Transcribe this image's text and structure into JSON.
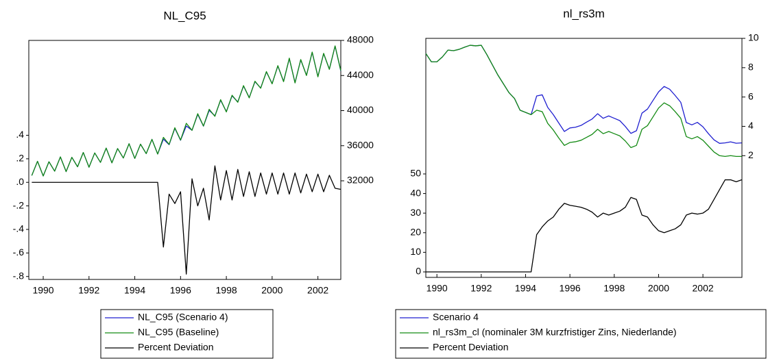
{
  "chart_data": [
    {
      "type": "line",
      "title": "NL_C95",
      "legend": "bottom",
      "x": [
        1989.5,
        1989.75,
        1990,
        1990.25,
        1990.5,
        1990.75,
        1991,
        1991.25,
        1991.5,
        1991.75,
        1992,
        1992.25,
        1992.5,
        1992.75,
        1993,
        1993.25,
        1993.5,
        1993.75,
        1994,
        1994.25,
        1994.5,
        1994.75,
        1995,
        1995.25,
        1995.5,
        1995.75,
        1996,
        1996.25,
        1996.5,
        1996.75,
        1997,
        1997.25,
        1997.5,
        1997.75,
        1998,
        1998.25,
        1998.5,
        1998.75,
        1999,
        1999.25,
        1999.5,
        1999.75,
        2000,
        2000.25,
        2000.5,
        2000.75,
        2001,
        2001.25,
        2001.5,
        2001.75,
        2002,
        2002.25,
        2002.5,
        2002.75,
        2003
      ],
      "xlim": [
        1989.37,
        2003.0
      ],
      "xticks": [
        1990,
        1992,
        1994,
        1996,
        1998,
        2000,
        2002
      ],
      "ylim": [
        -0.825,
        1.206
      ],
      "yticks": [
        {
          "value": 0.4,
          "label": ".4"
        },
        {
          "value": 0.2,
          "label": ".2"
        },
        {
          "value": 0,
          "label": ".0"
        },
        {
          "value": -0.2,
          "label": "-.2"
        },
        {
          "value": -0.4,
          "label": "-.4"
        },
        {
          "value": -0.6,
          "label": "-.6"
        },
        {
          "value": -0.8,
          "label": "-.8"
        }
      ],
      "y2lim": [
        20760,
        48000
      ],
      "y2ticks": [
        32000,
        36000,
        40000,
        44000,
        48000
      ],
      "series": [
        {
          "name": "NL_C95 (Scenario 4)",
          "color": "#1f1fd0",
          "axis": "y2",
          "values": [
            32600,
            34225,
            32550,
            34175,
            33100,
            34725,
            33050,
            34675,
            33600,
            35225,
            33550,
            35175,
            34100,
            35725,
            34050,
            35675,
            34600,
            36225,
            34550,
            36175,
            35100,
            36725,
            35050,
            36747,
            36114,
            37982,
            36621,
            38249,
            37761,
            39571,
            38231,
            40022,
            39405,
            41188,
            39890,
            41687,
            40995,
            42799,
            41487,
            43298,
            42584,
            44406,
            43084,
            45080,
            43335,
            45929,
            43185,
            45784,
            44031,
            46638,
            43881,
            46488,
            44727,
            47351,
            44523
          ]
        },
        {
          "name": "NL_C95 (Baseline)",
          "color": "#138a13",
          "axis": "y2",
          "values": [
            32600,
            34225,
            32550,
            34175,
            33100,
            34725,
            33050,
            34675,
            33600,
            35225,
            33550,
            35175,
            34100,
            35725,
            34050,
            35675,
            34600,
            36225,
            34550,
            36175,
            35100,
            36725,
            35050,
            36950,
            36150,
            38050,
            36650,
            38550,
            37750,
            39650,
            38250,
            40150,
            39350,
            41250,
            39850,
            41750,
            40950,
            42850,
            41450,
            43350,
            42550,
            44450,
            43050,
            45125,
            43300,
            45975,
            43150,
            45825,
            44000,
            46675,
            43850,
            46525,
            44700,
            47375,
            44550
          ]
        },
        {
          "name": "Percent Deviation",
          "color": "#000000",
          "axis": "y",
          "values": [
            0,
            0,
            0,
            0,
            0,
            0,
            0,
            0,
            0,
            0,
            0,
            0,
            0,
            0,
            0,
            0,
            0,
            0,
            0,
            0,
            0,
            0,
            0,
            -0.55,
            -0.1,
            -0.18,
            -0.08,
            -0.78,
            0.03,
            -0.2,
            -0.05,
            -0.32,
            0.14,
            -0.15,
            0.1,
            -0.15,
            0.11,
            -0.12,
            0.09,
            -0.12,
            0.08,
            -0.1,
            0.08,
            -0.1,
            0.08,
            -0.1,
            0.08,
            -0.09,
            0.07,
            -0.08,
            0.07,
            -0.08,
            0.06,
            -0.05,
            -0.06
          ]
        }
      ]
    },
    {
      "type": "line",
      "title": "nl_rs3m",
      "legend": "bottom",
      "x": [
        1989.5,
        1989.75,
        1990,
        1990.25,
        1990.5,
        1990.75,
        1991,
        1991.25,
        1991.5,
        1991.75,
        1992,
        1992.25,
        1992.5,
        1992.75,
        1993,
        1993.25,
        1993.5,
        1993.75,
        1994,
        1994.25,
        1994.5,
        1994.75,
        1995,
        1995.25,
        1995.5,
        1995.75,
        1996,
        1996.25,
        1996.5,
        1996.75,
        1997,
        1997.25,
        1997.5,
        1997.75,
        1998,
        1998.25,
        1998.5,
        1998.75,
        1999,
        1999.25,
        1999.5,
        1999.75,
        2000,
        2000.25,
        2000.5,
        2000.75,
        2001,
        2001.25,
        2001.5,
        2001.75,
        2002,
        2002.25,
        2002.5,
        2002.75,
        2003,
        2003.25,
        2003.5,
        2003.75
      ],
      "xlim": [
        1989.5,
        2003.76
      ],
      "xticks": [
        1990,
        1992,
        1994,
        1996,
        1998,
        2000,
        2002
      ],
      "ylim": [
        -2.8,
        119.2
      ],
      "yticks": [
        0,
        10,
        20,
        30,
        40,
        50
      ],
      "y2lim": [
        -6.3,
        10
      ],
      "y2ticks": [
        2,
        4,
        6,
        8,
        10
      ],
      "series": [
        {
          "name": "Scenario 4",
          "color": "#1f1fd0",
          "axis": "y2",
          "values": [
            8.97,
            8.4,
            8.4,
            8.74,
            9.2,
            9.16,
            9.25,
            9.4,
            9.53,
            9.49,
            9.53,
            8.9,
            8.2,
            7.5,
            6.9,
            6.3,
            5.9,
            5.1,
            4.95,
            4.8,
            6.07,
            6.15,
            5.29,
            4.8,
            4.22,
            3.65,
            3.89,
            3.94,
            4.06,
            4.29,
            4.5,
            4.86,
            4.55,
            4.71,
            4.55,
            4.39,
            3.99,
            3.52,
            3.7,
            4.9,
            5.18,
            5.77,
            6.35,
            6.72,
            6.53,
            6.1,
            5.64,
            4.26,
            4.1,
            4.27,
            3.97,
            3.5,
            3.08,
            2.84,
            2.87,
            2.94,
            2.85,
            2.87
          ]
        },
        {
          "name": "nl_rs3m_cl (nominaler 3M kurzfristiger Zins, Niederlande)",
          "color": "#138a13",
          "axis": "y2",
          "values": [
            8.97,
            8.4,
            8.4,
            8.74,
            9.2,
            9.16,
            9.25,
            9.4,
            9.53,
            9.49,
            9.53,
            8.9,
            8.2,
            7.5,
            6.9,
            6.3,
            5.9,
            5.1,
            4.95,
            4.8,
            5.1,
            5.0,
            4.2,
            3.75,
            3.2,
            2.7,
            2.9,
            2.95,
            3.05,
            3.25,
            3.45,
            3.8,
            3.5,
            3.65,
            3.5,
            3.35,
            3.0,
            2.55,
            2.7,
            3.8,
            4.05,
            4.65,
            5.25,
            5.6,
            5.4,
            5.0,
            4.55,
            3.3,
            3.15,
            3.3,
            3.05,
            2.65,
            2.25,
            2.0,
            1.95,
            2.0,
            1.95,
            1.95
          ]
        },
        {
          "name": "Percent Deviation",
          "color": "#000000",
          "axis": "y",
          "values": [
            0,
            0,
            0,
            0,
            0,
            0,
            0,
            0,
            0,
            0,
            0,
            0,
            0,
            0,
            0,
            0,
            0,
            0,
            0,
            0,
            19,
            23,
            26,
            28,
            32,
            35,
            34,
            33.5,
            33,
            32,
            30.5,
            28,
            30,
            29,
            30,
            31,
            33,
            38,
            37,
            29,
            28,
            24,
            21,
            20,
            21,
            22,
            24,
            29,
            30,
            29.5,
            30,
            32,
            37,
            42,
            47,
            47,
            46,
            47
          ]
        }
      ]
    }
  ]
}
